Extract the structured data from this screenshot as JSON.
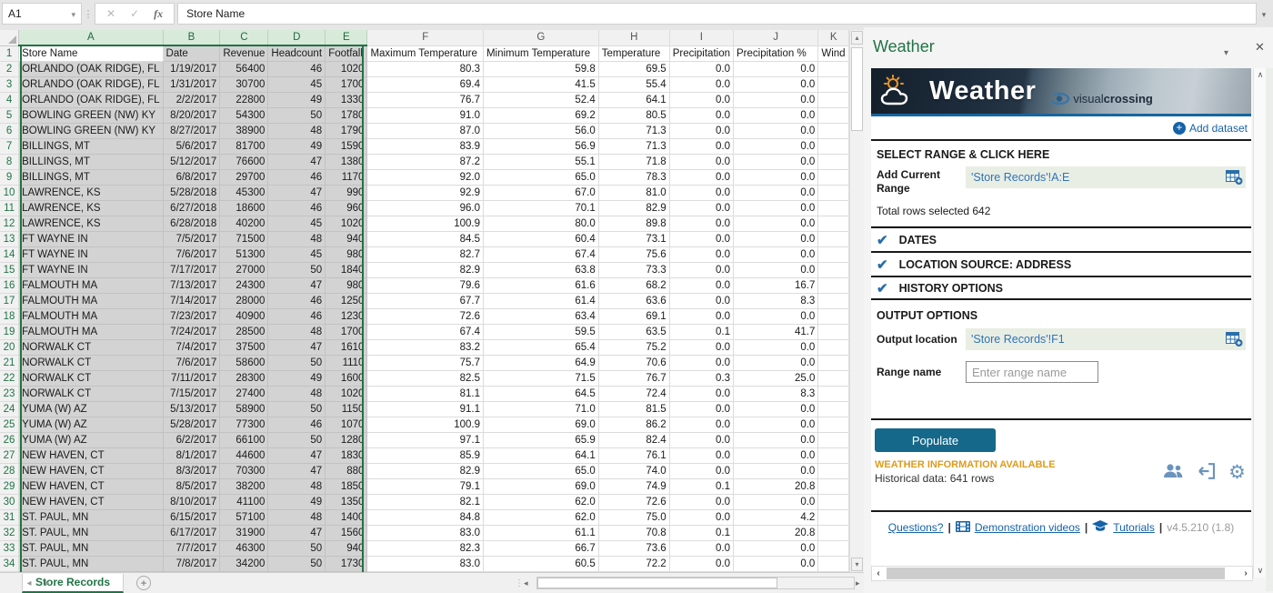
{
  "formula_bar": {
    "name_box": "A1",
    "value": "Store Name"
  },
  "spreadsheet": {
    "col_letters": [
      "A",
      "B",
      "C",
      "D",
      "E",
      "F",
      "G",
      "H",
      "I",
      "J",
      "K"
    ],
    "headers": [
      "Store Name",
      "Date",
      "Revenue",
      "Headcount",
      "Footfall",
      "Maximum Temperature",
      "Minimum Temperature",
      "Temperature",
      "Precipitation",
      "Precipitation %",
      "Wind"
    ],
    "rows": [
      [
        "ORLANDO (OAK RIDGE), FL",
        "1/19/2017",
        "56400",
        "46",
        "1020",
        "80.3",
        "59.8",
        "69.5",
        "0.0",
        "0.0"
      ],
      [
        "ORLANDO (OAK RIDGE), FL",
        "1/31/2017",
        "30700",
        "45",
        "1700",
        "69.4",
        "41.5",
        "55.4",
        "0.0",
        "0.0"
      ],
      [
        "ORLANDO (OAK RIDGE), FL",
        "2/2/2017",
        "22800",
        "49",
        "1330",
        "76.7",
        "52.4",
        "64.1",
        "0.0",
        "0.0"
      ],
      [
        "BOWLING GREEN (NW) KY",
        "8/20/2017",
        "54300",
        "50",
        "1780",
        "91.0",
        "69.2",
        "80.5",
        "0.0",
        "0.0"
      ],
      [
        "BOWLING GREEN (NW) KY",
        "8/27/2017",
        "38900",
        "48",
        "1790",
        "87.0",
        "56.0",
        "71.3",
        "0.0",
        "0.0"
      ],
      [
        "BILLINGS, MT",
        "5/6/2017",
        "81700",
        "49",
        "1590",
        "83.9",
        "56.9",
        "71.3",
        "0.0",
        "0.0"
      ],
      [
        "BILLINGS, MT",
        "5/12/2017",
        "76600",
        "47",
        "1380",
        "87.2",
        "55.1",
        "71.8",
        "0.0",
        "0.0"
      ],
      [
        "BILLINGS, MT",
        "6/8/2017",
        "29700",
        "46",
        "1170",
        "92.0",
        "65.0",
        "78.3",
        "0.0",
        "0.0"
      ],
      [
        "LAWRENCE, KS",
        "5/28/2018",
        "45300",
        "47",
        "990",
        "92.9",
        "67.0",
        "81.0",
        "0.0",
        "0.0"
      ],
      [
        "LAWRENCE, KS",
        "6/27/2018",
        "18600",
        "46",
        "960",
        "96.0",
        "70.1",
        "82.9",
        "0.0",
        "0.0"
      ],
      [
        "LAWRENCE, KS",
        "6/28/2018",
        "40200",
        "45",
        "1020",
        "100.9",
        "80.0",
        "89.8",
        "0.0",
        "0.0"
      ],
      [
        "FT WAYNE IN",
        "7/5/2017",
        "71500",
        "48",
        "940",
        "84.5",
        "60.4",
        "73.1",
        "0.0",
        "0.0"
      ],
      [
        "FT WAYNE IN",
        "7/6/2017",
        "51300",
        "45",
        "980",
        "82.7",
        "67.4",
        "75.6",
        "0.0",
        "0.0"
      ],
      [
        "FT WAYNE IN",
        "7/17/2017",
        "27000",
        "50",
        "1840",
        "82.9",
        "63.8",
        "73.3",
        "0.0",
        "0.0"
      ],
      [
        "FALMOUTH MA",
        "7/13/2017",
        "24300",
        "47",
        "980",
        "79.6",
        "61.6",
        "68.2",
        "0.0",
        "16.7"
      ],
      [
        "FALMOUTH MA",
        "7/14/2017",
        "28000",
        "46",
        "1250",
        "67.7",
        "61.4",
        "63.6",
        "0.0",
        "8.3"
      ],
      [
        "FALMOUTH MA",
        "7/23/2017",
        "40900",
        "46",
        "1230",
        "72.6",
        "63.4",
        "69.1",
        "0.0",
        "0.0"
      ],
      [
        "FALMOUTH MA",
        "7/24/2017",
        "28500",
        "48",
        "1700",
        "67.4",
        "59.5",
        "63.5",
        "0.1",
        "41.7"
      ],
      [
        "NORWALK CT",
        "7/4/2017",
        "37500",
        "47",
        "1610",
        "83.2",
        "65.4",
        "75.2",
        "0.0",
        "0.0"
      ],
      [
        "NORWALK CT",
        "7/6/2017",
        "58600",
        "50",
        "1110",
        "75.7",
        "64.9",
        "70.6",
        "0.0",
        "0.0"
      ],
      [
        "NORWALK CT",
        "7/11/2017",
        "28300",
        "49",
        "1600",
        "82.5",
        "71.5",
        "76.7",
        "0.3",
        "25.0"
      ],
      [
        "NORWALK CT",
        "7/15/2017",
        "27400",
        "48",
        "1020",
        "81.1",
        "64.5",
        "72.4",
        "0.0",
        "8.3"
      ],
      [
        "YUMA (W) AZ",
        "5/13/2017",
        "58900",
        "50",
        "1150",
        "91.1",
        "71.0",
        "81.5",
        "0.0",
        "0.0"
      ],
      [
        "YUMA (W) AZ",
        "5/28/2017",
        "77300",
        "46",
        "1070",
        "100.9",
        "69.0",
        "86.2",
        "0.0",
        "0.0"
      ],
      [
        "YUMA (W) AZ",
        "6/2/2017",
        "66100",
        "50",
        "1280",
        "97.1",
        "65.9",
        "82.4",
        "0.0",
        "0.0"
      ],
      [
        "NEW HAVEN, CT",
        "8/1/2017",
        "44600",
        "47",
        "1830",
        "85.9",
        "64.1",
        "76.1",
        "0.0",
        "0.0"
      ],
      [
        "NEW HAVEN, CT",
        "8/3/2017",
        "70300",
        "47",
        "880",
        "82.9",
        "65.0",
        "74.0",
        "0.0",
        "0.0"
      ],
      [
        "NEW HAVEN, CT",
        "8/5/2017",
        "38200",
        "48",
        "1850",
        "79.1",
        "69.0",
        "74.9",
        "0.1",
        "20.8"
      ],
      [
        "NEW HAVEN, CT",
        "8/10/2017",
        "41100",
        "49",
        "1350",
        "82.1",
        "62.0",
        "72.6",
        "0.0",
        "0.0"
      ],
      [
        "ST. PAUL, MN",
        "6/15/2017",
        "57100",
        "48",
        "1400",
        "84.8",
        "62.0",
        "75.0",
        "0.0",
        "4.2"
      ],
      [
        "ST. PAUL, MN",
        "6/17/2017",
        "31900",
        "47",
        "1560",
        "83.0",
        "61.1",
        "70.8",
        "0.1",
        "20.8"
      ],
      [
        "ST. PAUL, MN",
        "7/7/2017",
        "46300",
        "50",
        "940",
        "82.3",
        "66.7",
        "73.6",
        "0.0",
        "0.0"
      ],
      [
        "ST. PAUL, MN",
        "7/8/2017",
        "34200",
        "50",
        "1730",
        "83.0",
        "60.5",
        "72.2",
        "0.0",
        "0.0"
      ]
    ],
    "tab": "Store Records",
    "selected_range": "A:E"
  },
  "panel": {
    "title": "Weather",
    "banner": {
      "title": "Weather",
      "logo_light": "visual",
      "logo_bold": "crossing"
    },
    "add_dataset": "Add dataset",
    "select_range_heading": "SELECT RANGE & CLICK HERE",
    "add_current_range_label": "Add Current Range",
    "range_value": "'Store Records'!A:E",
    "total_rows": "Total rows selected 642",
    "sections": [
      {
        "label": "DATES"
      },
      {
        "label": "LOCATION SOURCE: ADDRESS"
      },
      {
        "label": "HISTORY OPTIONS"
      }
    ],
    "output_options_heading": "OUTPUT OPTIONS",
    "output_location_label": "Output location",
    "output_location_value": "'Store Records'!F1",
    "range_name_label": "Range name",
    "range_name_placeholder": "Enter range name",
    "populate_label": "Populate",
    "status_title": "WEATHER INFORMATION AVAILABLE",
    "status_detail": "Historical data: 641 rows",
    "footer": {
      "questions": "Questions?",
      "demos": "Demonstration videos",
      "tutorials": "Tutorials",
      "version": "v4.5.210 (1.8)"
    }
  },
  "colors": {
    "excel_green": "#217346",
    "selection_gray": "#d3d3d3",
    "link_blue": "#1563a8",
    "check_blue": "#2a6ea9",
    "field_bg": "#e9eee4",
    "populate_teal": "#15688a",
    "status_orange": "#dd9b1e",
    "banner_navy": "#1d2c3c",
    "icon_steel_blue": "#6b94bd"
  }
}
